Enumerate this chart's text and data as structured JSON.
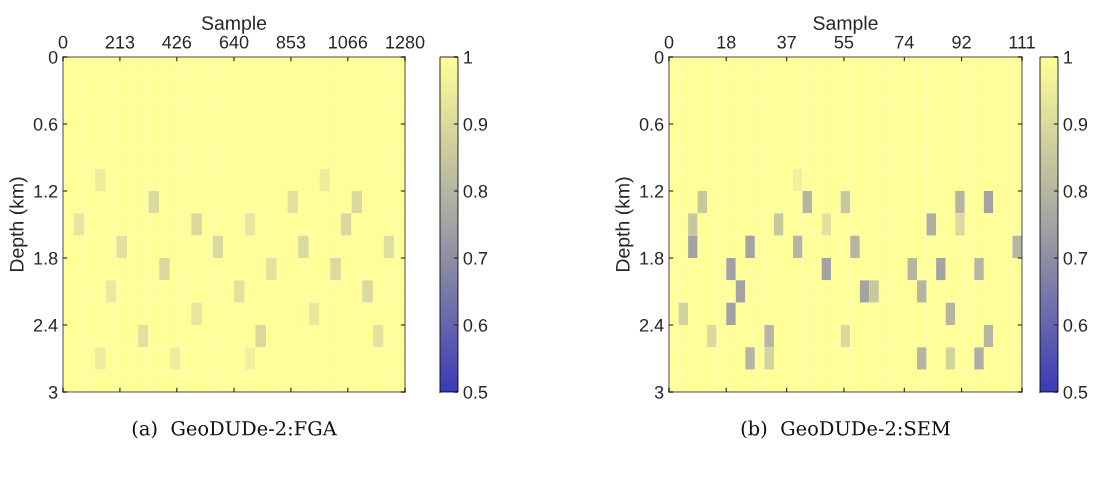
{
  "chart_data": [
    {
      "type": "heatmap",
      "xlabel": "Sample",
      "ylabel": "Depth (km)",
      "xlim": [
        0,
        1280
      ],
      "xticks": [
        0,
        213,
        426,
        640,
        853,
        1066,
        1280
      ],
      "ylim": [
        3,
        0
      ],
      "yticks": [
        0,
        0.6,
        1.2,
        1.8,
        2.4,
        3
      ],
      "clim": [
        0.5,
        1
      ],
      "cticks": [
        0.5,
        0.6,
        0.7,
        0.8,
        0.9,
        1
      ],
      "annotations": [
        "(a)  GeoDUDe-2:FGA"
      ],
      "cells": [
        [
          1,
          1,
          1,
          1,
          1,
          1,
          1,
          1,
          1,
          1,
          1,
          1,
          1,
          1,
          1,
          1,
          1,
          1,
          1,
          1,
          1,
          1,
          1,
          1,
          1,
          1,
          1,
          1,
          1,
          1,
          1,
          1
        ],
        [
          1,
          1,
          1,
          1,
          1,
          1,
          1,
          1,
          1,
          1,
          1,
          1,
          1,
          1,
          1,
          1,
          1,
          1,
          1,
          1,
          1,
          1,
          1,
          1,
          1,
          1,
          1,
          1,
          1,
          1,
          1,
          1
        ],
        [
          1,
          1,
          1,
          1,
          1,
          1,
          1,
          1,
          1,
          1,
          1,
          1,
          1,
          1,
          1,
          1,
          1,
          1,
          1,
          1,
          1,
          1,
          1,
          1,
          1,
          1,
          1,
          1,
          1,
          1,
          1,
          1
        ],
        [
          1,
          1,
          1,
          1,
          1,
          1,
          1,
          1,
          1,
          1,
          1,
          1,
          1,
          1,
          1,
          1,
          1,
          1,
          1,
          1,
          1,
          1,
          1,
          1,
          1,
          1,
          1,
          1,
          1,
          1,
          1,
          1
        ],
        [
          1,
          1,
          1,
          1,
          1,
          1,
          1,
          1,
          1,
          1,
          1,
          1,
          1,
          1,
          1,
          1,
          1,
          1,
          1,
          1,
          1,
          1,
          1,
          1,
          1,
          1,
          1,
          1,
          1,
          1,
          1,
          1
        ],
        [
          1,
          1,
          1,
          0.95,
          1,
          1,
          1,
          1,
          1,
          1,
          1,
          1,
          1,
          1,
          1,
          1,
          1,
          1,
          1,
          1,
          1,
          1,
          1,
          1,
          0.95,
          1,
          1,
          1,
          1,
          1,
          1,
          1
        ],
        [
          1,
          1,
          1,
          1,
          1,
          1,
          1,
          1,
          0.9,
          1,
          1,
          1,
          1,
          1,
          1,
          1,
          1,
          1,
          1,
          1,
          1,
          0.92,
          1,
          1,
          1,
          1,
          1,
          0.9,
          1,
          1,
          1,
          1
        ],
        [
          1,
          0.93,
          1,
          1,
          1,
          1,
          1,
          1,
          1,
          1,
          1,
          1,
          0.9,
          1,
          1,
          1,
          1,
          0.94,
          1,
          1,
          1,
          1,
          1,
          1,
          1,
          1,
          0.9,
          1,
          1,
          1,
          1,
          1
        ],
        [
          1,
          1,
          1,
          1,
          1,
          0.92,
          1,
          1,
          1,
          1,
          1,
          1,
          1,
          1,
          0.9,
          1,
          1,
          1,
          1,
          1,
          1,
          1,
          0.9,
          1,
          1,
          1,
          1,
          1,
          1,
          1,
          0.91,
          1
        ],
        [
          1,
          1,
          1,
          1,
          1,
          1,
          1,
          1,
          1,
          0.9,
          1,
          1,
          1,
          1,
          1,
          1,
          1,
          1,
          1,
          0.92,
          1,
          1,
          1,
          1,
          1,
          0.9,
          1,
          1,
          1,
          1,
          1,
          1
        ],
        [
          1,
          1,
          1,
          1,
          0.94,
          1,
          1,
          1,
          1,
          1,
          1,
          1,
          1,
          1,
          1,
          1,
          0.92,
          1,
          1,
          1,
          1,
          1,
          1,
          1,
          1,
          1,
          1,
          1,
          0.9,
          1,
          1,
          1
        ],
        [
          1,
          1,
          1,
          1,
          1,
          1,
          1,
          1,
          1,
          1,
          1,
          1,
          0.93,
          1,
          1,
          1,
          1,
          1,
          1,
          1,
          1,
          1,
          1,
          0.94,
          1,
          1,
          1,
          1,
          1,
          1,
          1,
          1
        ],
        [
          1,
          1,
          1,
          1,
          1,
          1,
          1,
          0.92,
          1,
          1,
          1,
          1,
          1,
          1,
          1,
          1,
          1,
          1,
          0.9,
          1,
          1,
          1,
          1,
          1,
          1,
          1,
          1,
          1,
          1,
          0.92,
          1,
          1
        ],
        [
          1,
          1,
          1,
          0.95,
          1,
          1,
          1,
          1,
          1,
          1,
          0.95,
          1,
          1,
          1,
          1,
          1,
          1,
          0.96,
          1,
          1,
          1,
          1,
          1,
          1,
          1,
          1,
          1,
          1,
          1,
          1,
          1,
          1
        ],
        [
          1,
          1,
          1,
          1,
          1,
          1,
          1,
          1,
          1,
          1,
          1,
          1,
          1,
          1,
          1,
          1,
          1,
          1,
          1,
          1,
          1,
          1,
          1,
          1,
          1,
          1,
          1,
          1,
          1,
          1,
          1,
          1
        ]
      ]
    },
    {
      "type": "heatmap",
      "xlabel": "Sample",
      "ylabel": "Depth (km)",
      "xlim": [
        0,
        111
      ],
      "xticks": [
        0,
        18,
        37,
        55,
        74,
        92,
        111
      ],
      "ylim": [
        3,
        0
      ],
      "yticks": [
        0,
        0.6,
        1.2,
        1.8,
        2.4,
        3
      ],
      "clim": [
        0.5,
        1
      ],
      "cticks": [
        0.5,
        0.6,
        0.7,
        0.8,
        0.9,
        1
      ],
      "annotations": [
        "(b)  GeoDUDe-2:SEM"
      ],
      "cells": [
        [
          1,
          1,
          1,
          1,
          1,
          1,
          1,
          1,
          1,
          1,
          1,
          1,
          1,
          1,
          1,
          1,
          1,
          1,
          1,
          1,
          1,
          1,
          1,
          1,
          1,
          1,
          1,
          1,
          1,
          1,
          1,
          1,
          1,
          1,
          1,
          1,
          1
        ],
        [
          1,
          1,
          1,
          1,
          1,
          1,
          1,
          1,
          1,
          1,
          1,
          1,
          1,
          1,
          1,
          1,
          1,
          1,
          1,
          1,
          1,
          1,
          1,
          1,
          1,
          1,
          1,
          1,
          1,
          1,
          1,
          1,
          1,
          1,
          1,
          1,
          1
        ],
        [
          1,
          1,
          1,
          1,
          1,
          1,
          1,
          1,
          1,
          1,
          1,
          1,
          1,
          1,
          1,
          1,
          1,
          1,
          1,
          1,
          1,
          1,
          1,
          1,
          1,
          1,
          1,
          1,
          1,
          1,
          1,
          1,
          1,
          1,
          1,
          1,
          1
        ],
        [
          1,
          1,
          1,
          1,
          1,
          1,
          1,
          1,
          1,
          1,
          1,
          1,
          1,
          1,
          1,
          1,
          1,
          1,
          1,
          1,
          1,
          1,
          1,
          1,
          1,
          1,
          1,
          1,
          1,
          1,
          1,
          1,
          1,
          1,
          1,
          1,
          1
        ],
        [
          1,
          1,
          1,
          1,
          1,
          1,
          1,
          1,
          1,
          1,
          1,
          1,
          1,
          1,
          1,
          1,
          1,
          1,
          1,
          1,
          1,
          1,
          1,
          1,
          1,
          1,
          1,
          1,
          1,
          1,
          1,
          1,
          1,
          1,
          1,
          1,
          1
        ],
        [
          1,
          1,
          1,
          1,
          1,
          1,
          1,
          1,
          1,
          1,
          1,
          1,
          1,
          0.96,
          1,
          1,
          1,
          1,
          1,
          1,
          1,
          1,
          1,
          1,
          1,
          1,
          1,
          1,
          1,
          1,
          1,
          1,
          1,
          1,
          1,
          1,
          1
        ],
        [
          1,
          1,
          1,
          0.85,
          1,
          1,
          1,
          1,
          1,
          1,
          1,
          1,
          1,
          1,
          0.8,
          1,
          1,
          1,
          0.85,
          1,
          1,
          1,
          1,
          1,
          1,
          1,
          1,
          1,
          1,
          1,
          0.8,
          1,
          1,
          0.75,
          1,
          1,
          1
        ],
        [
          1,
          1,
          0.85,
          1,
          1,
          1,
          1,
          1,
          1,
          1,
          1,
          0.85,
          1,
          1,
          1,
          1,
          0.92,
          1,
          1,
          1,
          1,
          1,
          1,
          1,
          1,
          1,
          1,
          0.78,
          1,
          1,
          0.9,
          1,
          1,
          1,
          1,
          1,
          1
        ],
        [
          1,
          1,
          0.75,
          1,
          1,
          1,
          1,
          1,
          0.75,
          1,
          1,
          1,
          1,
          0.8,
          1,
          1,
          1,
          1,
          1,
          0.8,
          1,
          1,
          1,
          1,
          1,
          1,
          1,
          1,
          1,
          1,
          1,
          1,
          1,
          1,
          1,
          1,
          0.8
        ],
        [
          1,
          1,
          1,
          1,
          1,
          1,
          0.75,
          1,
          1,
          1,
          1,
          1,
          1,
          1,
          1,
          1,
          0.75,
          1,
          1,
          1,
          1,
          1,
          1,
          1,
          1,
          0.8,
          1,
          1,
          0.75,
          1,
          1,
          1,
          0.8,
          1,
          1,
          1,
          1
        ],
        [
          1,
          1,
          1,
          1,
          1,
          1,
          1,
          0.75,
          1,
          1,
          1,
          1,
          1,
          1,
          1,
          1,
          1,
          1,
          1,
          1,
          0.75,
          0.85,
          1,
          1,
          1,
          1,
          0.8,
          1,
          1,
          1,
          1,
          1,
          1,
          1,
          1,
          1,
          1
        ],
        [
          1,
          0.88,
          1,
          1,
          1,
          1,
          0.75,
          1,
          1,
          1,
          1,
          1,
          1,
          1,
          1,
          1,
          1,
          1,
          1,
          1,
          1,
          1,
          1,
          1,
          1,
          1,
          1,
          1,
          1,
          0.8,
          1,
          1,
          1,
          1,
          1,
          1,
          1
        ],
        [
          1,
          1,
          1,
          1,
          0.9,
          1,
          1,
          1,
          1,
          1,
          0.8,
          1,
          1,
          1,
          1,
          1,
          1,
          1,
          0.9,
          1,
          1,
          1,
          1,
          1,
          1,
          1,
          1,
          1,
          1,
          1,
          1,
          1,
          1,
          0.8,
          1,
          1,
          1
        ],
        [
          1,
          1,
          1,
          1,
          1,
          1,
          1,
          1,
          0.8,
          1,
          0.88,
          1,
          1,
          1,
          1,
          1,
          1,
          1,
          1,
          1,
          1,
          1,
          1,
          1,
          1,
          1,
          0.8,
          1,
          1,
          0.88,
          1,
          1,
          0.78,
          1,
          1,
          1,
          1
        ],
        [
          1,
          1,
          1,
          1,
          1,
          1,
          1,
          1,
          1,
          1,
          1,
          1,
          1,
          1,
          1,
          1,
          1,
          1,
          1,
          1,
          1,
          1,
          1,
          1,
          1,
          1,
          1,
          1,
          1,
          1,
          1,
          1,
          1,
          1,
          1,
          1,
          1
        ]
      ]
    }
  ]
}
